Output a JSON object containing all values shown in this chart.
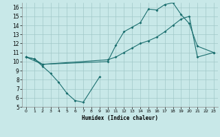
{
  "xlabel": "Humidex (Indice chaleur)",
  "bg_color": "#c8e8e8",
  "grid_color": "#a0c8c8",
  "line_color": "#1a6e6e",
  "xlim": [
    -0.5,
    23.5
  ],
  "ylim": [
    5,
    16.5
  ],
  "xticks": [
    0,
    1,
    2,
    3,
    4,
    5,
    6,
    7,
    8,
    9,
    10,
    11,
    12,
    13,
    14,
    15,
    16,
    17,
    18,
    19,
    20,
    21,
    22,
    23
  ],
  "yticks": [
    5,
    6,
    7,
    8,
    9,
    10,
    11,
    12,
    13,
    14,
    15,
    16
  ],
  "line1_x": [
    0,
    1,
    2,
    3,
    4,
    5,
    6,
    7,
    9
  ],
  "line1_y": [
    10.5,
    10.3,
    9.5,
    8.7,
    7.7,
    6.5,
    5.7,
    5.5,
    8.3
  ],
  "line2_x": [
    0,
    1,
    2,
    10,
    11,
    12,
    13,
    14,
    15,
    16,
    17,
    18,
    19,
    20,
    21,
    23
  ],
  "line2_y": [
    10.5,
    10.3,
    9.7,
    10.0,
    11.8,
    13.3,
    13.8,
    14.3,
    15.8,
    15.7,
    16.3,
    16.5,
    15.2,
    14.2,
    11.7,
    11.0
  ],
  "line3_x": [
    0,
    2,
    10,
    11,
    12,
    13,
    14,
    15,
    16,
    17,
    18,
    19,
    20,
    21,
    23
  ],
  "line3_y": [
    10.5,
    9.7,
    10.2,
    10.5,
    11.0,
    11.5,
    12.0,
    12.3,
    12.7,
    13.3,
    14.0,
    14.7,
    15.0,
    10.5,
    11.0
  ]
}
